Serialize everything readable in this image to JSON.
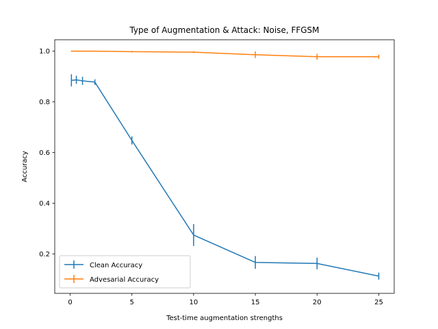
{
  "chart_data": {
    "type": "line",
    "title": "Type of Augmentation & Attack: Noise, FFGSM",
    "xlabel": "Test-time augmentation strengths",
    "ylabel": "Accuracy",
    "xlim": [
      -1.25,
      26.25
    ],
    "ylim": [
      0.045,
      1.045
    ],
    "xticks": [
      0,
      5,
      10,
      15,
      20,
      25
    ],
    "xtick_labels": [
      "0",
      "5",
      "10",
      "15",
      "20",
      "25"
    ],
    "yticks": [
      0.2,
      0.4,
      0.6,
      0.8,
      1.0
    ],
    "ytick_labels": [
      "0.2",
      "0.4",
      "0.6",
      "0.8",
      "1.0"
    ],
    "grid": false,
    "legend_position": "lower-left",
    "series": [
      {
        "name": "Clean Accuracy",
        "color": "#1f77b4",
        "x": [
          0.1,
          0.5,
          1,
          2,
          5,
          10,
          15,
          20,
          25
        ],
        "y": [
          0.885,
          0.887,
          0.883,
          0.878,
          0.648,
          0.275,
          0.167,
          0.163,
          0.113
        ],
        "yerr": [
          0.024,
          0.016,
          0.016,
          0.011,
          0.016,
          0.043,
          0.025,
          0.023,
          0.014
        ]
      },
      {
        "name": "Advesarial Accuracy",
        "color": "#ff7f0e",
        "x": [
          0.1,
          0.5,
          1,
          2,
          5,
          10,
          15,
          20,
          25
        ],
        "y": [
          1.0,
          1.0,
          1.0,
          1.0,
          0.998,
          0.996,
          0.986,
          0.978,
          0.978
        ],
        "yerr": [
          0.002,
          0.002,
          0.002,
          0.002,
          0.003,
          0.003,
          0.013,
          0.012,
          0.008
        ]
      }
    ]
  }
}
